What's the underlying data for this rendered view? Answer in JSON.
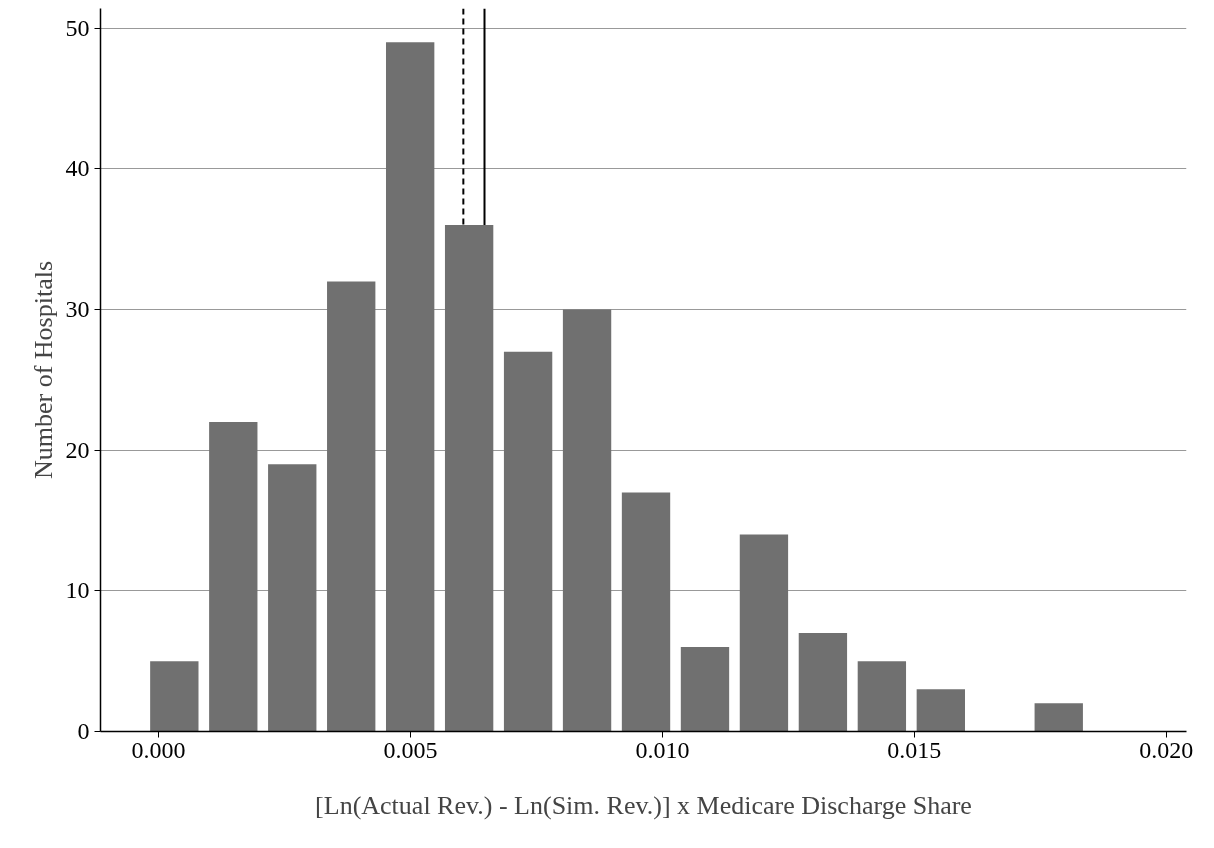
{
  "chart_data": {
    "type": "histogram",
    "xlabel": "[Ln(Actual Rev.) - Ln(Sim. Rev.)] x Medicare Discharge Share",
    "ylabel": "Number of Hospitals",
    "bins": [
      -0.00027,
      0.0009,
      0.00207,
      0.00324,
      0.00441,
      0.00558,
      0.00675,
      0.00792,
      0.00909,
      0.01026,
      0.01143,
      0.0126,
      0.01377,
      0.01494,
      0.01611,
      0.01728,
      0.01845
    ],
    "values": [
      5,
      22,
      19,
      32,
      49,
      36,
      27,
      30,
      17,
      6,
      14,
      7,
      5,
      3,
      0,
      2
    ],
    "color": "#707070",
    "xlim": [
      -0.00115,
      0.0204
    ],
    "ylim": [
      0,
      51.4
    ],
    "xticks": [
      {
        "value": 0,
        "label": "0.000"
      },
      {
        "value": 0.005,
        "label": "0.005"
      },
      {
        "value": 0.01,
        "label": "0.010"
      },
      {
        "value": 0.015,
        "label": "0.015"
      },
      {
        "value": 0.02,
        "label": "0.020"
      }
    ],
    "yticks": [
      0,
      10,
      20,
      30,
      40,
      50
    ],
    "grid": "y",
    "ref_lines": [
      {
        "axis": "x",
        "value": 0.00605,
        "line_style": "dashed",
        "color": "#000000"
      },
      {
        "axis": "x",
        "value": 0.00647,
        "line_style": "solid",
        "color": "#000000"
      }
    ]
  }
}
